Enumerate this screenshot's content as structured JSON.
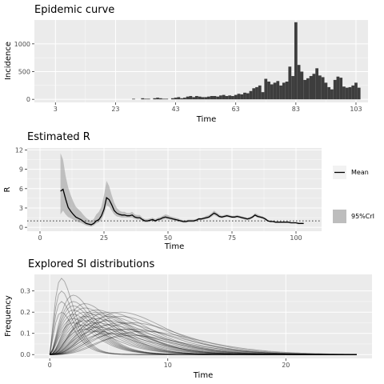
{
  "chart_data": [
    {
      "type": "bar",
      "title": "Epidemic curve",
      "xlabel": "Time",
      "ylabel": "Incidence",
      "x_ticks": [
        3,
        23,
        43,
        63,
        83,
        103
      ],
      "y_ticks": [
        0,
        500,
        1000
      ],
      "xlim": [
        -4,
        107
      ],
      "ylim": [
        -55,
        1430
      ],
      "x": [
        3,
        4,
        5,
        6,
        7,
        8,
        9,
        10,
        11,
        12,
        13,
        14,
        15,
        16,
        17,
        18,
        19,
        20,
        21,
        22,
        23,
        24,
        25,
        26,
        27,
        28,
        29,
        30,
        31,
        32,
        33,
        34,
        35,
        36,
        37,
        38,
        39,
        40,
        41,
        42,
        43,
        44,
        45,
        46,
        47,
        48,
        49,
        50,
        51,
        52,
        53,
        54,
        55,
        56,
        57,
        58,
        59,
        60,
        61,
        62,
        63,
        64,
        65,
        66,
        67,
        68,
        69,
        70,
        71,
        72,
        73,
        74,
        75,
        76,
        77,
        78,
        79,
        80,
        81,
        82,
        83,
        84,
        85,
        86,
        87,
        88,
        89,
        90,
        91,
        92,
        93,
        94,
        95,
        96,
        97,
        98,
        99,
        100,
        101,
        102,
        103,
        104
      ],
      "values": [
        0,
        0,
        0,
        0,
        0,
        0,
        0,
        0,
        0,
        0,
        0,
        0,
        0,
        0,
        0,
        0,
        0,
        0,
        0,
        0,
        0,
        0,
        0,
        0,
        0,
        0,
        10,
        0,
        0,
        20,
        10,
        10,
        0,
        20,
        30,
        20,
        10,
        10,
        0,
        20,
        30,
        40,
        20,
        30,
        50,
        60,
        40,
        60,
        50,
        40,
        40,
        50,
        60,
        60,
        50,
        70,
        80,
        60,
        70,
        60,
        80,
        100,
        90,
        120,
        110,
        150,
        200,
        220,
        250,
        130,
        370,
        320,
        270,
        300,
        330,
        250,
        300,
        320,
        590,
        420,
        1390,
        620,
        500,
        350,
        380,
        420,
        460,
        560,
        430,
        400,
        300,
        220,
        180,
        350,
        410,
        390,
        230,
        210,
        220,
        250,
        300,
        210
      ]
    },
    {
      "type": "line",
      "title": "Estimated R",
      "xlabel": "Time",
      "ylabel": "R",
      "x_ticks": [
        0,
        25,
        50,
        75,
        100
      ],
      "y_ticks": [
        0,
        3,
        6,
        9,
        12
      ],
      "xlim": [
        -5,
        110
      ],
      "ylim": [
        -0.6,
        12.3
      ],
      "reference_line": 1,
      "legend": {
        "position": "right",
        "entries": [
          "Mean",
          "95%CrI"
        ]
      },
      "series": [
        {
          "name": "Mean",
          "x": [
            8,
            9,
            10,
            11,
            12,
            13,
            14,
            15,
            16,
            17,
            18,
            19,
            20,
            21,
            22,
            23,
            24,
            25,
            26,
            27,
            28,
            29,
            30,
            31,
            32,
            33,
            34,
            35,
            36,
            37,
            38,
            39,
            40,
            41,
            42,
            43,
            44,
            45,
            46,
            47,
            48,
            49,
            50,
            51,
            52,
            53,
            54,
            55,
            56,
            57,
            58,
            59,
            60,
            61,
            62,
            63,
            64,
            65,
            66,
            67,
            68,
            69,
            70,
            71,
            72,
            73,
            74,
            75,
            76,
            77,
            78,
            79,
            80,
            81,
            82,
            83,
            84,
            85,
            86,
            87,
            88,
            89,
            90,
            91,
            92,
            93,
            94,
            95,
            96,
            97,
            98,
            99,
            100,
            101,
            102,
            103
          ],
          "values": [
            5.6,
            5.9,
            4.4,
            3.1,
            2.5,
            2.0,
            1.6,
            1.4,
            1.2,
            0.9,
            0.6,
            0.5,
            0.4,
            0.6,
            1.0,
            1.2,
            1.8,
            2.8,
            4.6,
            4.3,
            3.5,
            2.6,
            2.2,
            2.0,
            1.9,
            1.9,
            1.8,
            1.8,
            1.9,
            1.6,
            1.5,
            1.5,
            1.2,
            1.0,
            1.0,
            1.1,
            1.2,
            1.0,
            1.2,
            1.3,
            1.5,
            1.6,
            1.5,
            1.4,
            1.3,
            1.2,
            1.1,
            1.0,
            0.9,
            0.9,
            1.0,
            1.0,
            1.0,
            1.1,
            1.3,
            1.3,
            1.4,
            1.5,
            1.6,
            1.9,
            2.2,
            2.0,
            1.7,
            1.6,
            1.7,
            1.8,
            1.7,
            1.6,
            1.6,
            1.7,
            1.6,
            1.5,
            1.4,
            1.3,
            1.4,
            1.6,
            1.9,
            1.7,
            1.6,
            1.5,
            1.3,
            1.0,
            0.9,
            0.9,
            0.8,
            0.8,
            0.8,
            0.8,
            0.8,
            0.8,
            0.7,
            0.7,
            0.7,
            0.6,
            0.6,
            0.6
          ]
        },
        {
          "name": "95%CrI",
          "x": [
            8,
            9,
            10,
            11,
            12,
            13,
            14,
            15,
            16,
            17,
            18,
            19,
            20,
            21,
            22,
            23,
            24,
            25,
            26,
            27,
            28,
            29,
            30,
            31,
            32,
            33,
            34,
            35,
            36,
            37,
            38,
            39,
            40,
            41,
            42,
            43,
            44,
            45,
            46,
            47,
            48,
            49,
            50,
            51,
            52,
            53,
            54,
            55,
            56,
            57,
            58,
            59,
            60,
            61,
            62,
            63,
            64,
            65,
            66,
            67,
            68,
            69,
            70,
            71,
            72,
            73,
            74,
            75,
            76,
            77,
            78,
            79,
            80,
            81,
            82,
            83,
            84,
            85,
            86,
            87,
            88,
            89,
            90,
            91,
            92,
            93,
            94,
            95,
            96,
            97,
            98,
            99,
            100,
            101,
            102,
            103
          ],
          "lower": [
            2.0,
            2.6,
            2.0,
            1.6,
            1.4,
            1.2,
            1.0,
            0.8,
            0.7,
            0.5,
            0.3,
            0.2,
            0.1,
            0.3,
            0.6,
            0.8,
            1.2,
            2.0,
            3.4,
            3.2,
            2.6,
            2.0,
            1.7,
            1.6,
            1.5,
            1.5,
            1.5,
            1.5,
            1.5,
            1.3,
            1.2,
            1.2,
            1.0,
            0.8,
            0.8,
            0.9,
            1.0,
            0.8,
            1.0,
            1.1,
            1.2,
            1.3,
            1.2,
            1.2,
            1.1,
            1.0,
            0.9,
            0.8,
            0.7,
            0.7,
            0.8,
            0.8,
            0.8,
            0.9,
            1.1,
            1.1,
            1.2,
            1.3,
            1.4,
            1.6,
            1.9,
            1.7,
            1.5,
            1.4,
            1.5,
            1.6,
            1.5,
            1.4,
            1.4,
            1.5,
            1.4,
            1.3,
            1.2,
            1.1,
            1.2,
            1.4,
            1.7,
            1.5,
            1.4,
            1.3,
            1.1,
            0.9,
            0.8,
            0.8,
            0.7,
            0.7,
            0.7,
            0.7,
            0.7,
            0.7,
            0.6,
            0.6,
            0.6,
            0.5,
            0.5,
            0.5
          ],
          "upper": [
            11.5,
            10.5,
            8.0,
            6.2,
            5.0,
            4.0,
            3.2,
            2.8,
            2.4,
            1.9,
            1.5,
            1.2,
            1.0,
            1.3,
            2.0,
            2.4,
            3.2,
            5.0,
            7.2,
            6.4,
            5.0,
            3.8,
            3.0,
            2.6,
            2.4,
            2.4,
            2.2,
            2.2,
            2.4,
            2.0,
            1.9,
            1.9,
            1.5,
            1.3,
            1.3,
            1.4,
            1.5,
            1.3,
            1.5,
            1.6,
            1.8,
            2.0,
            1.9,
            1.7,
            1.6,
            1.5,
            1.4,
            1.2,
            1.1,
            1.1,
            1.2,
            1.2,
            1.2,
            1.3,
            1.5,
            1.5,
            1.6,
            1.8,
            1.9,
            2.2,
            2.6,
            2.3,
            2.0,
            1.8,
            1.9,
            2.0,
            1.9,
            1.8,
            1.8,
            1.9,
            1.8,
            1.7,
            1.6,
            1.5,
            1.6,
            1.8,
            2.2,
            2.0,
            1.8,
            1.7,
            1.5,
            1.2,
            1.0,
            1.0,
            0.9,
            0.9,
            0.9,
            0.9,
            0.9,
            0.9,
            0.8,
            0.8,
            0.8,
            0.7,
            0.7,
            0.7
          ]
        }
      ]
    },
    {
      "type": "line",
      "title": "Explored SI distributions",
      "xlabel": "Time",
      "ylabel": "Frequency",
      "x_ticks": [
        0,
        10,
        20
      ],
      "y_ticks": [
        0.0,
        0.1,
        0.2,
        0.3
      ],
      "xlim": [
        -1.3,
        27.3
      ],
      "ylim": [
        -0.018,
        0.378
      ],
      "x_range": [
        0,
        26
      ],
      "curve_count": 40,
      "curves": [
        {
          "peak_time": 1,
          "peak": 0.36
        },
        {
          "peak_time": 1,
          "peak": 0.3
        },
        {
          "peak_time": 1,
          "peak": 0.25
        },
        {
          "peak_time": 2,
          "peak": 0.25
        },
        {
          "peak_time": 2,
          "peak": 0.23
        },
        {
          "peak_time": 2,
          "peak": 0.21
        },
        {
          "peak_time": 2,
          "peak": 0.19
        },
        {
          "peak_time": 2,
          "peak": 0.17
        },
        {
          "peak_time": 3,
          "peak": 0.22
        },
        {
          "peak_time": 3,
          "peak": 0.2
        },
        {
          "peak_time": 3,
          "peak": 0.18
        },
        {
          "peak_time": 3,
          "peak": 0.16
        },
        {
          "peak_time": 3,
          "peak": 0.14
        },
        {
          "peak_time": 4,
          "peak": 0.21
        },
        {
          "peak_time": 4,
          "peak": 0.19
        },
        {
          "peak_time": 4,
          "peak": 0.17
        },
        {
          "peak_time": 4,
          "peak": 0.15
        },
        {
          "peak_time": 4,
          "peak": 0.13
        },
        {
          "peak_time": 5,
          "peak": 0.2
        },
        {
          "peak_time": 5,
          "peak": 0.18
        },
        {
          "peak_time": 5,
          "peak": 0.16
        },
        {
          "peak_time": 5,
          "peak": 0.14
        },
        {
          "peak_time": 5,
          "peak": 0.12
        },
        {
          "peak_time": 6,
          "peak": 0.18
        },
        {
          "peak_time": 6,
          "peak": 0.15
        },
        {
          "peak_time": 6,
          "peak": 0.12
        },
        {
          "peak_time": 6,
          "peak": 0.1
        },
        {
          "peak_time": 7,
          "peak": 0.15
        },
        {
          "peak_time": 7,
          "peak": 0.12
        },
        {
          "peak_time": 7,
          "peak": 0.09
        },
        {
          "peak_time": 2,
          "peak": 0.15
        },
        {
          "peak_time": 3,
          "peak": 0.12
        },
        {
          "peak_time": 4,
          "peak": 0.11
        },
        {
          "peak_time": 5,
          "peak": 0.1
        },
        {
          "peak_time": 2,
          "peak": 0.28
        },
        {
          "peak_time": 3,
          "peak": 0.24
        },
        {
          "peak_time": 4,
          "peak": 0.2
        },
        {
          "peak_time": 6,
          "peak": 0.2
        },
        {
          "peak_time": 8,
          "peak": 0.11
        },
        {
          "peak_time": 1,
          "peak": 0.2
        }
      ]
    }
  ],
  "style": {
    "panel_bg": "#ebebeb",
    "grid_major": "#ffffff",
    "bar_fill": "#3d3d3d",
    "line_color": "#000000",
    "ribbon_fill": "#999999",
    "si_line_color": "#000000",
    "tick_text": "#4d4d4d"
  }
}
